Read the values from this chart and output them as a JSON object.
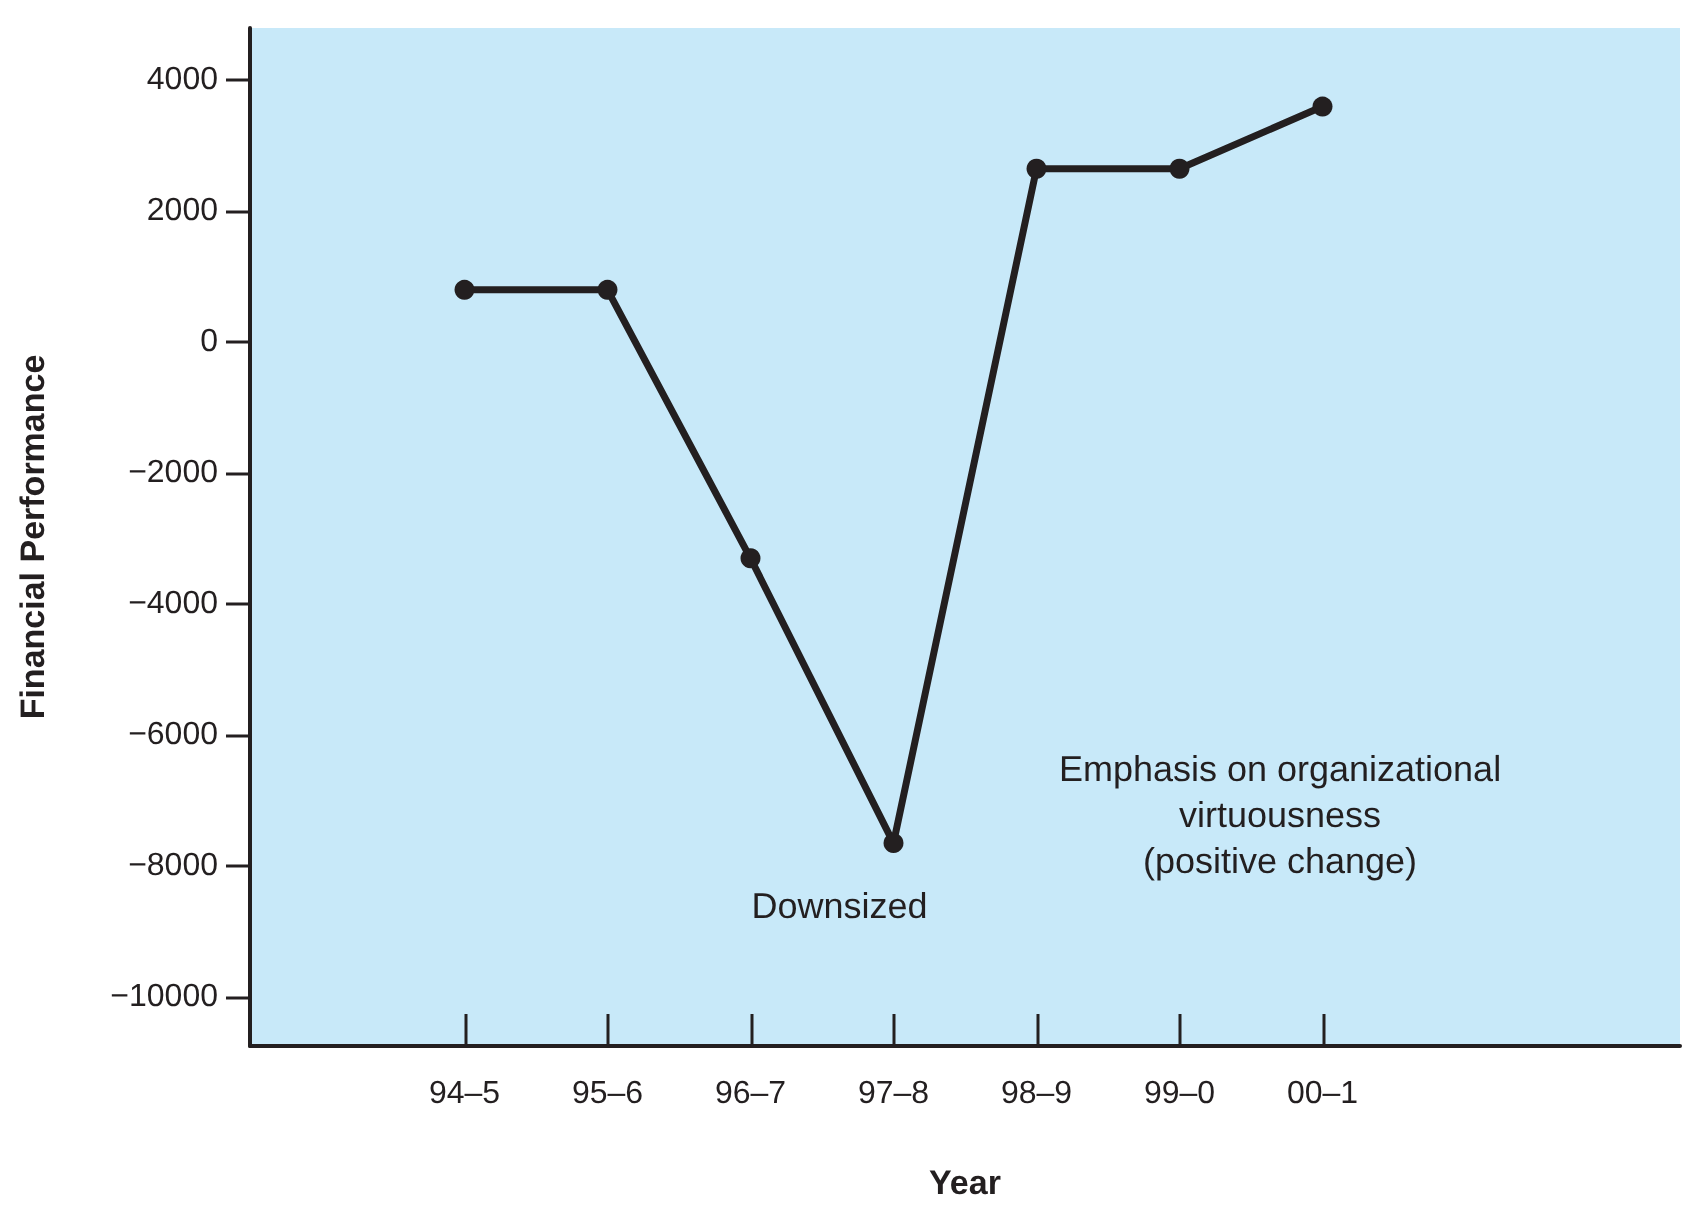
{
  "chart_data": {
    "type": "line",
    "xlabel": "Year",
    "ylabel": "Financial Performance",
    "categories": [
      null,
      "94–5",
      "95–6",
      "96–7",
      "97–8",
      "98–9",
      "99–0",
      "00–1",
      null,
      null
    ],
    "series": [
      {
        "color": "#231f20",
        "values": [
          null,
          800,
          800,
          -3300,
          -7650,
          2650,
          2650,
          3600,
          null,
          null
        ]
      }
    ],
    "ylim": [
      -10750,
      4800
    ],
    "yticks": [
      -10000,
      -8000,
      -6000,
      -4000,
      -2000,
      0,
      2000,
      4000
    ],
    "annotations": [
      {
        "text": "Downsized",
        "x": "97–8",
        "y": -7650
      },
      "Emphasis on organizational\nvirtuousness\n(positive change)"
    ],
    "grid": false,
    "marker": "circle",
    "line_style": "solid"
  }
}
